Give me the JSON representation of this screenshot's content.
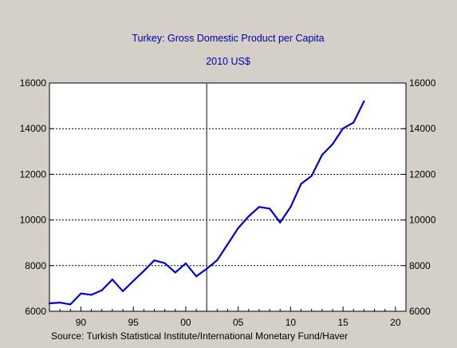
{
  "chart_data": {
    "type": "line",
    "title": "Turkey: Gross Domestic Product per Capita",
    "subtitle": "2010 US$",
    "source": "Source:  Turkish Statistical Institute/International Monetary Fund/Haver",
    "xlim": [
      1987,
      2021
    ],
    "ylim": [
      6000,
      16000
    ],
    "y_ticks": [
      6000,
      8000,
      10000,
      12000,
      14000,
      16000
    ],
    "y_tick_labels": [
      "6000",
      "8000",
      "10000",
      "12000",
      "14000",
      "16000"
    ],
    "x_ticks": [
      1990,
      1995,
      2000,
      2005,
      2010,
      2015,
      2020
    ],
    "x_tick_labels": [
      "90",
      "95",
      "00",
      "05",
      "10",
      "15",
      "20"
    ],
    "grid": "horizontal dotted",
    "axes": "left and right",
    "vertical_marker_x": 2002,
    "series": [
      {
        "color": "#0000cc",
        "x": [
          1987,
          1988,
          1989,
          1990,
          1991,
          1992,
          1993,
          1994,
          1995,
          1996,
          1997,
          1998,
          1999,
          2000,
          2001,
          2002,
          2003,
          2004,
          2005,
          2006,
          2007,
          2008,
          2009,
          2010,
          2011,
          2012,
          2013,
          2014,
          2015,
          2016,
          2017
        ],
        "values": [
          6350,
          6380,
          6300,
          6780,
          6720,
          6920,
          7390,
          6880,
          7330,
          7770,
          8230,
          8110,
          7700,
          8100,
          7530,
          7860,
          8240,
          8940,
          9640,
          10160,
          10570,
          10500,
          9890,
          10570,
          11580,
          11930,
          12850,
          13320,
          14010,
          14270,
          15200
        ]
      }
    ]
  },
  "colors": {
    "background": "#d4d0c8",
    "plot_background": "#ffffff",
    "title": "#0000aa",
    "line": "#0000cc",
    "axis": "#000000"
  }
}
